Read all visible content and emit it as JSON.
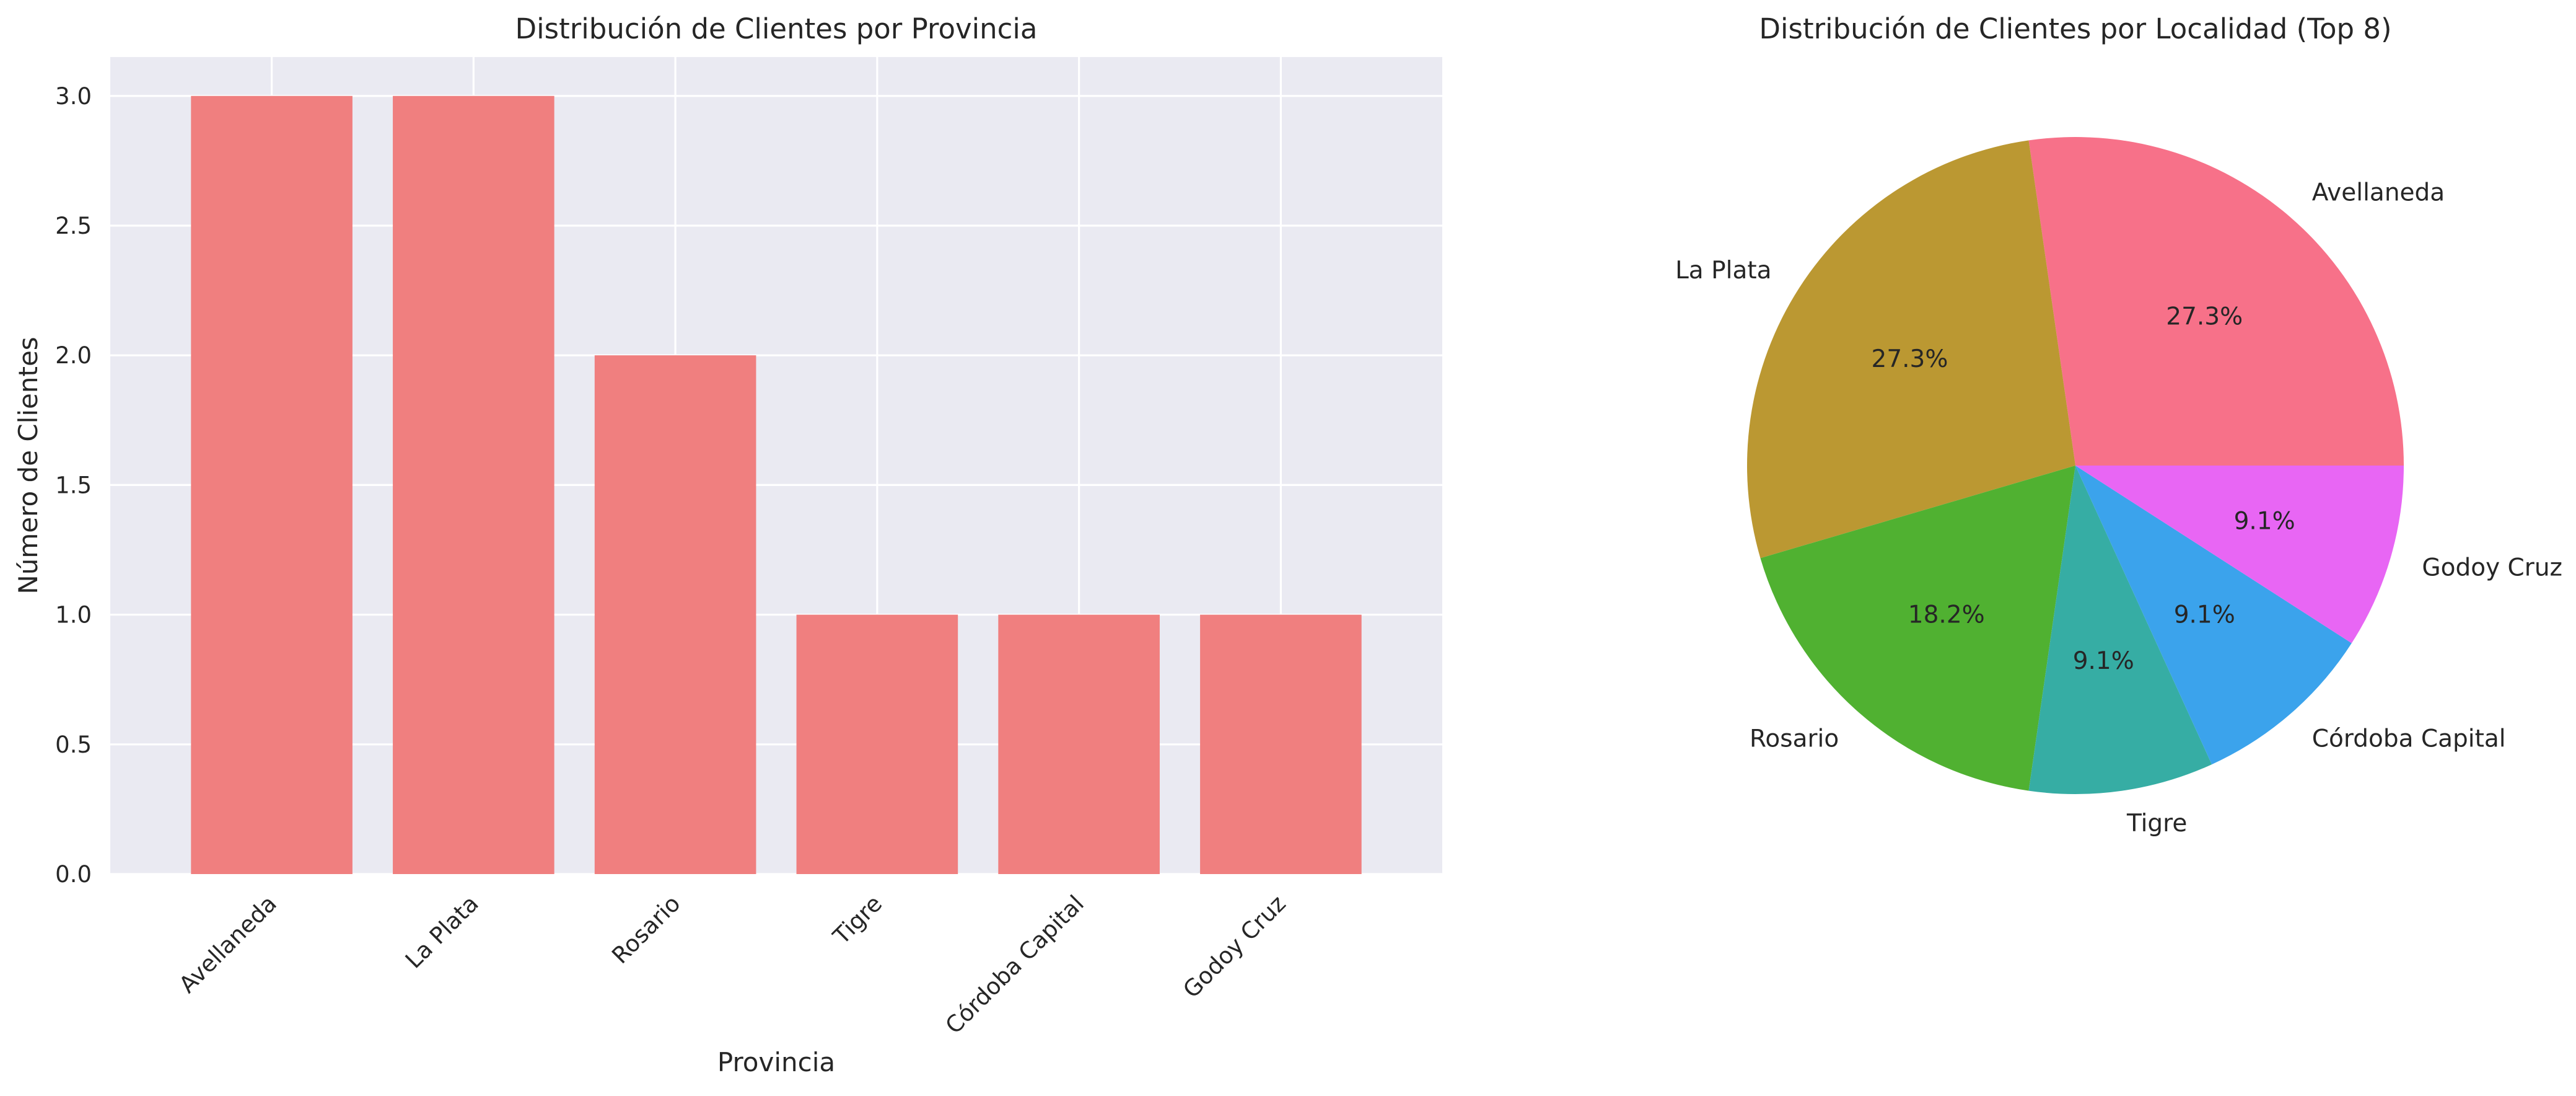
{
  "chart_data": [
    {
      "type": "bar",
      "title": "Distribución de Clientes por Provincia",
      "xlabel": "Provincia",
      "ylabel": "Número de Clientes",
      "categories": [
        "Avellaneda",
        "La Plata",
        "Rosario",
        "Tigre",
        "Córdoba Capital",
        "Godoy Cruz"
      ],
      "values": [
        3,
        3,
        2,
        1,
        1,
        1
      ],
      "ylim": [
        0,
        3.15
      ],
      "yticks": [
        "0.0",
        "0.5",
        "1.0",
        "1.5",
        "2.0",
        "2.5",
        "3.0"
      ],
      "grid": true,
      "color": "#f07f7f",
      "background": "#eaeaf2"
    },
    {
      "type": "pie",
      "title": "Distribución de Clientes por Localidad (Top 8)",
      "labels": [
        "Avellaneda",
        "La Plata",
        "Rosario",
        "Tigre",
        "Córdoba Capital",
        "Godoy Cruz"
      ],
      "values": [
        3,
        3,
        2,
        1,
        1,
        1
      ],
      "percent_labels": [
        "27.3%",
        "27.3%",
        "18.2%",
        "9.1%",
        "9.1%",
        "9.1%"
      ],
      "colors": [
        "#f77189",
        "#bb9832",
        "#50b131",
        "#36ada4",
        "#3ba3ec",
        "#e866f4"
      ],
      "start_angle_deg": 0
    }
  ]
}
